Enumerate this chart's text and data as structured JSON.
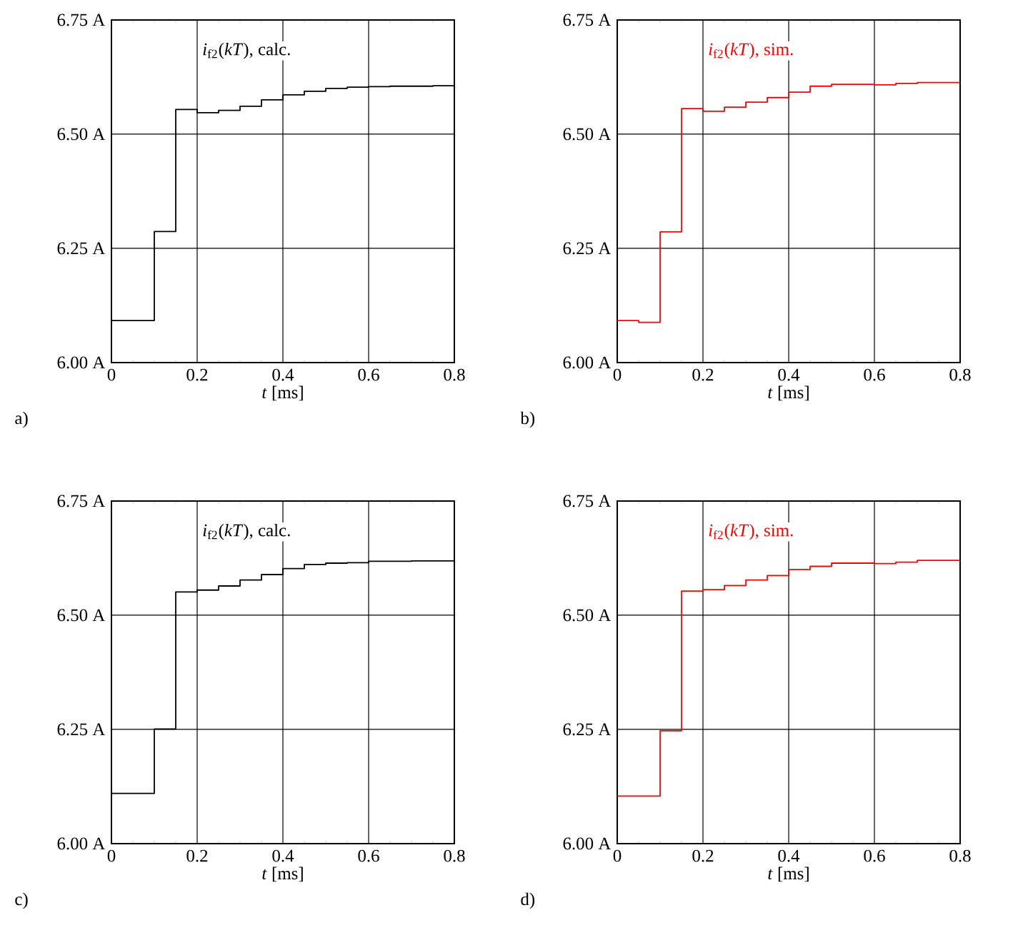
{
  "chart_data": [
    {
      "type": "step",
      "xlabel": "*t* [ms]",
      "annotations": [
        "a)"
      ],
      "xlim": [
        0,
        0.8
      ],
      "ylim": [
        6.0,
        6.75
      ],
      "xticks": [
        0,
        0.2,
        0.4,
        0.6,
        0.8
      ],
      "yticks": [
        {
          "value": 6.0,
          "label": "6.00 A"
        },
        {
          "value": 6.25,
          "label": "6.25 A"
        },
        {
          "value": 6.5,
          "label": "6.50 A"
        },
        {
          "value": 6.75,
          "label": "6.75 A"
        }
      ],
      "grid": true,
      "series": [
        {
          "name": "*i*$_{f2}$(*kT*), calc.",
          "color": "#000000",
          "x": [
            0,
            0.1,
            0.15,
            0.2,
            0.25,
            0.3,
            0.35,
            0.4,
            0.45,
            0.5,
            0.55,
            0.6,
            0.65,
            0.7,
            0.75,
            0.8
          ],
          "values": [
            6.092,
            6.287,
            6.554,
            6.547,
            6.552,
            6.561,
            6.575,
            6.586,
            6.594,
            6.6,
            6.603,
            6.604,
            6.605,
            6.605,
            6.606,
            6.606
          ]
        }
      ]
    },
    {
      "type": "step",
      "xlabel": "*t* [ms]",
      "annotations": [
        "b)"
      ],
      "xlim": [
        0,
        0.8
      ],
      "ylim": [
        6.0,
        6.75
      ],
      "xticks": [
        0,
        0.2,
        0.4,
        0.6,
        0.8
      ],
      "yticks": [
        {
          "value": 6.0,
          "label": "6.00 A"
        },
        {
          "value": 6.25,
          "label": "6.25 A"
        },
        {
          "value": 6.5,
          "label": "6.50 A"
        },
        {
          "value": 6.75,
          "label": "6.75 A"
        }
      ],
      "grid": true,
      "series": [
        {
          "name": "*i*$_{f2}$(*kT*), sim.",
          "color": "#ff0000",
          "x": [
            0,
            0.05,
            0.1,
            0.15,
            0.2,
            0.25,
            0.3,
            0.35,
            0.4,
            0.45,
            0.5,
            0.55,
            0.6,
            0.65,
            0.7,
            0.8
          ],
          "values": [
            6.092,
            6.088,
            6.286,
            6.556,
            6.55,
            6.559,
            6.57,
            6.58,
            6.592,
            6.605,
            6.609,
            6.609,
            6.608,
            6.611,
            6.613,
            6.613
          ]
        }
      ]
    },
    {
      "type": "step",
      "xlabel": "*t* [ms]",
      "annotations": [
        "c)"
      ],
      "xlim": [
        0,
        0.8
      ],
      "ylim": [
        6.0,
        6.75
      ],
      "xticks": [
        0,
        0.2,
        0.4,
        0.6,
        0.8
      ],
      "yticks": [
        {
          "value": 6.0,
          "label": "6.00 A"
        },
        {
          "value": 6.25,
          "label": "6.25 A"
        },
        {
          "value": 6.5,
          "label": "6.50 A"
        },
        {
          "value": 6.75,
          "label": "6.75 A"
        }
      ],
      "grid": true,
      "series": [
        {
          "name": "*i*$_{f2}$(*kT*), calc.",
          "color": "#000000",
          "x": [
            0,
            0.1,
            0.15,
            0.2,
            0.25,
            0.3,
            0.35,
            0.4,
            0.45,
            0.5,
            0.55,
            0.6,
            0.7,
            0.8
          ],
          "values": [
            6.11,
            6.251,
            6.551,
            6.555,
            6.564,
            6.577,
            6.589,
            6.602,
            6.611,
            6.614,
            6.615,
            6.618,
            6.619,
            6.619
          ]
        }
      ]
    },
    {
      "type": "step",
      "xlabel": "*t* [ms]",
      "annotations": [
        "d)"
      ],
      "xlim": [
        0,
        0.8
      ],
      "ylim": [
        6.0,
        6.75
      ],
      "xticks": [
        0,
        0.2,
        0.4,
        0.6,
        0.8
      ],
      "yticks": [
        {
          "value": 6.0,
          "label": "6.00 A"
        },
        {
          "value": 6.25,
          "label": "6.25 A"
        },
        {
          "value": 6.5,
          "label": "6.50 A"
        },
        {
          "value": 6.75,
          "label": "6.75 A"
        }
      ],
      "grid": true,
      "series": [
        {
          "name": "*i*$_{f2}$(*kT*), sim.",
          "color": "#ff0000",
          "x": [
            0,
            0.1,
            0.15,
            0.2,
            0.25,
            0.3,
            0.35,
            0.4,
            0.45,
            0.5,
            0.55,
            0.6,
            0.65,
            0.7,
            0.8
          ],
          "values": [
            6.104,
            6.247,
            6.553,
            6.556,
            6.565,
            6.577,
            6.587,
            6.6,
            6.607,
            6.614,
            6.614,
            6.613,
            6.616,
            6.62,
            6.62
          ]
        }
      ]
    }
  ]
}
